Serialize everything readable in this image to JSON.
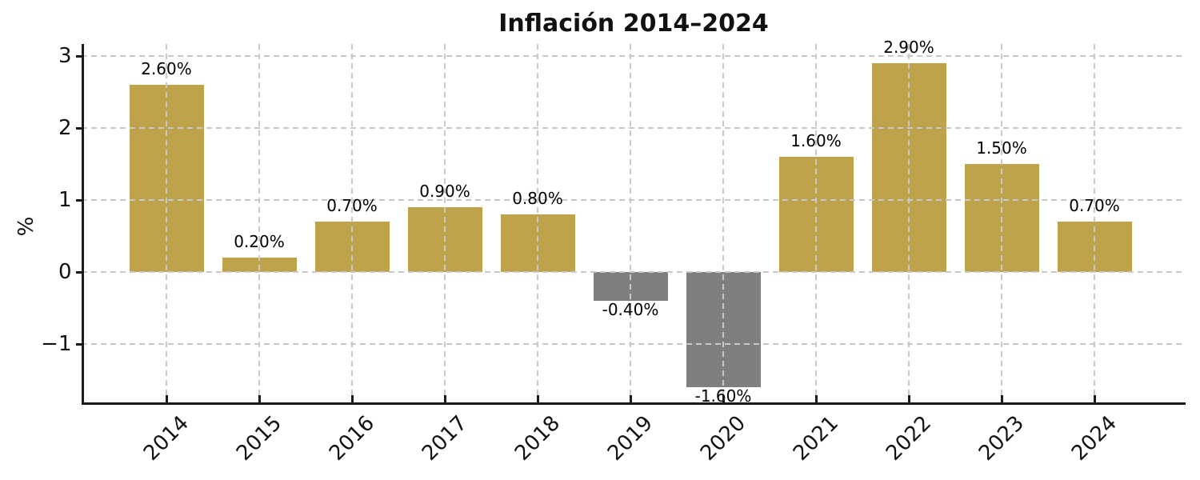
{
  "chart_data": {
    "type": "bar",
    "title": "Inflación 2014–2024",
    "ylabel": "%",
    "xlabel": "",
    "categories": [
      "2014",
      "2015",
      "2016",
      "2017",
      "2018",
      "2019",
      "2020",
      "2021",
      "2022",
      "2023",
      "2024"
    ],
    "values": [
      2.6,
      0.2,
      0.7,
      0.9,
      0.8,
      -0.4,
      -1.6,
      1.6,
      2.9,
      1.5,
      0.7
    ],
    "bar_labels": [
      "2.60%",
      "0.20%",
      "0.70%",
      "0.90%",
      "0.80%",
      "-0.40%",
      "-1.60%",
      "1.60%",
      "2.90%",
      "1.50%",
      "0.70%"
    ],
    "yticks": [
      3,
      2,
      1,
      0,
      -1
    ],
    "ytick_labels": [
      "3",
      "2",
      "1",
      "0",
      "−1"
    ],
    "ylim": [
      -1.84,
      3.17
    ],
    "grid": true,
    "grid_style": "dashed",
    "legend": "none",
    "colors": {
      "positive_bar": "#BEA34A",
      "negative_bar": "#7F7F7F",
      "grid": "#C9C9C9",
      "axis": "#1A1A1A",
      "text": "#111111"
    }
  }
}
